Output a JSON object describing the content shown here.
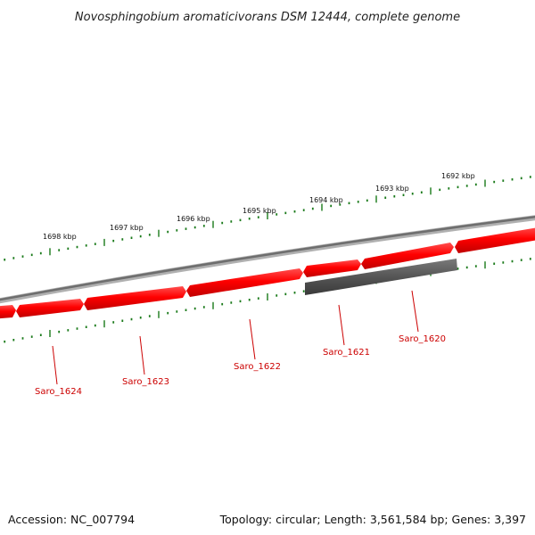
{
  "title": "Novosphingobium aromaticivorans DSM 12444, complete genome",
  "footer": {
    "accession": "Accession: NC_007794",
    "summary": "Topology: circular; Length: 3,561,584 bp; Genes: 3,397"
  },
  "colors": {
    "gene_forward": "#ff0000",
    "gene_reverse": "#555555",
    "backbone": "#808080",
    "ticks": "#1a7a1a",
    "labels": "#cc0000"
  },
  "scale_labels": [
    "1698 kbp",
    "1697 kbp",
    "1696 kbp",
    "1695 kbp",
    "1694 kbp",
    "1693 kbp",
    "1692 kbp"
  ],
  "genes": [
    {
      "label": "Saro_1624",
      "strand": "forward"
    },
    {
      "label": "Saro_1623",
      "strand": "forward"
    },
    {
      "label": "Saro_1622",
      "strand": "forward"
    },
    {
      "label": "Saro_1621",
      "strand": "forward"
    },
    {
      "label": "Saro_1620",
      "strand": "reverse"
    }
  ]
}
